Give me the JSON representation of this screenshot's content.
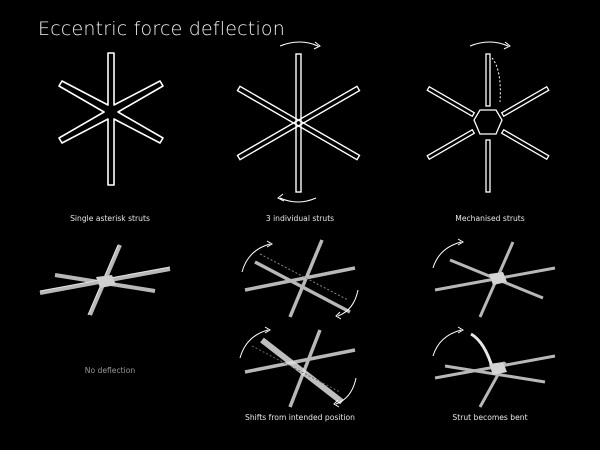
{
  "title": "Eccentric force deflection",
  "captions": {
    "single_asterisk": "Single asterisk struts",
    "individual_struts": "3 individual struts",
    "mechanised_struts": "Mechanised struts",
    "no_deflection": "No deflection",
    "shifts": "Shifts from intended position",
    "bent": "Strut becomes bent"
  },
  "colors": {
    "background": "#000000",
    "outline": "#ffffff",
    "metal": "#bdbdbd",
    "arrow": "#ffffff"
  },
  "icons": [
    "asterisk-outline",
    "three-bar-outline",
    "mechanised-hub-outline",
    "rotation-arrow"
  ]
}
